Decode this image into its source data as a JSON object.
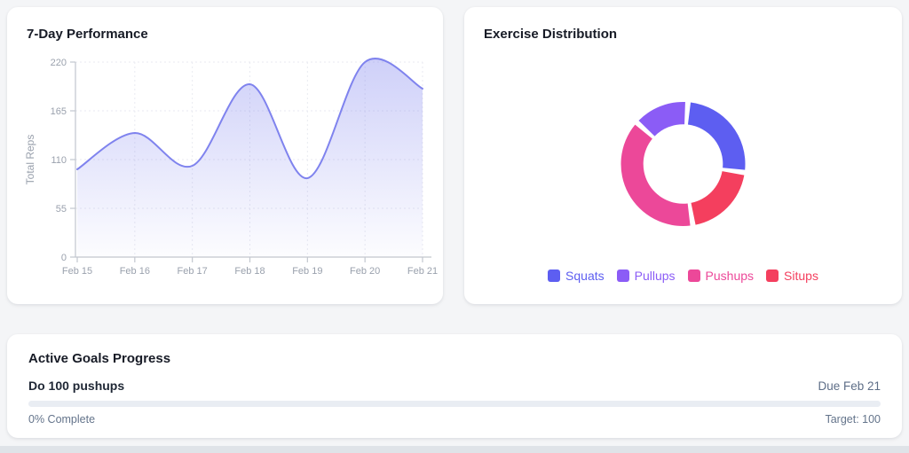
{
  "theme": {
    "page_background": "#f4f5f7",
    "card_background": "#ffffff",
    "bottom_strip_color": "#dfe3e8",
    "secondary_text_color": "#64748b",
    "progress_track_color": "#e9edf3",
    "progress_fill_color": "#6366f1"
  },
  "cards": {
    "performance": {
      "title": "7-Day Performance"
    },
    "distribution": {
      "title": "Exercise Distribution"
    },
    "goals": {
      "title": "Active Goals Progress",
      "items": [
        {
          "name": "Do 100 pushups",
          "due": "Due Feb 21",
          "complete_label": "0% Complete",
          "target_label": "Target: 100",
          "progress_percent": 0
        }
      ]
    }
  },
  "chart_data": [
    {
      "type": "line",
      "title": "7-Day Performance",
      "x": [
        "Feb 15",
        "Feb 16",
        "Feb 17",
        "Feb 18",
        "Feb 19",
        "Feb 20",
        "Feb 21"
      ],
      "series": [
        {
          "name": "Total Reps",
          "values": [
            99,
            140,
            103,
            195,
            89,
            220,
            190
          ]
        }
      ],
      "ylabel": "Total Reps",
      "xlabel": "",
      "ylim": [
        0,
        220
      ],
      "yticks": [
        0,
        55,
        110,
        165,
        220
      ],
      "grid": true,
      "area_fill": true,
      "line_color": "#7f83ee"
    },
    {
      "type": "pie",
      "subtype": "doughnut",
      "title": "Exercise Distribution",
      "labels": [
        "Squats",
        "Pullups",
        "Pushups",
        "Situps"
      ],
      "values": [
        26,
        14,
        40,
        20
      ],
      "values_unit": "percent (estimated from arc angles)",
      "colors": [
        "#5d5ef1",
        "#8b5cf6",
        "#ec4899",
        "#f43f5e"
      ],
      "draw_order": [
        0,
        3,
        2,
        1
      ],
      "rotation_deg": 7,
      "gap_deg": 5,
      "cutout_ratio": 0.64,
      "legend_position": "bottom"
    }
  ]
}
